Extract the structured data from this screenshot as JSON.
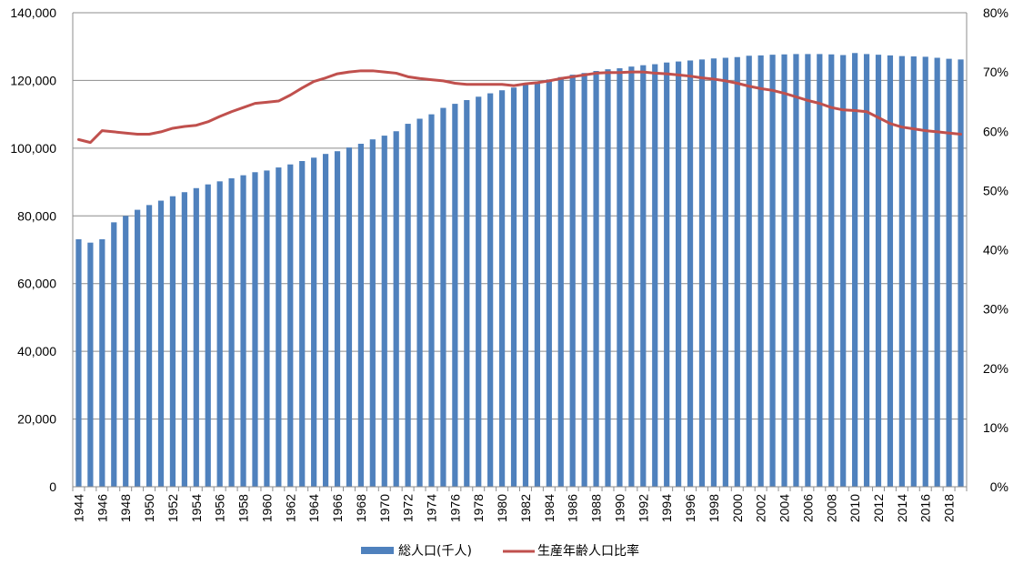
{
  "chart_data": {
    "type": "bar",
    "x": [
      1944,
      1945,
      1946,
      1947,
      1948,
      1949,
      1950,
      1951,
      1952,
      1953,
      1954,
      1955,
      1956,
      1957,
      1958,
      1959,
      1960,
      1961,
      1962,
      1963,
      1964,
      1965,
      1966,
      1967,
      1968,
      1969,
      1970,
      1971,
      1972,
      1973,
      1974,
      1975,
      1976,
      1977,
      1978,
      1979,
      1980,
      1981,
      1982,
      1983,
      1984,
      1985,
      1986,
      1987,
      1988,
      1989,
      1990,
      1991,
      1992,
      1993,
      1994,
      1995,
      1996,
      1997,
      1998,
      1999,
      2000,
      2001,
      2002,
      2003,
      2004,
      2005,
      2006,
      2007,
      2008,
      2009,
      2010,
      2011,
      2012,
      2013,
      2014,
      2015,
      2016,
      2017,
      2018,
      2019
    ],
    "x_tick_labels": [
      "1944",
      "1946",
      "1948",
      "1950",
      "1952",
      "1954",
      "1956",
      "1958",
      "1960",
      "1962",
      "1964",
      "1966",
      "1968",
      "1970",
      "1972",
      "1974",
      "1976",
      "1978",
      "1980",
      "1982",
      "1984",
      "1986",
      "1988",
      "1990",
      "1992",
      "1994",
      "1996",
      "1998",
      "2000",
      "2002",
      "2004",
      "2006",
      "2008",
      "2010",
      "2012",
      "2014",
      "2016",
      "2018"
    ],
    "series": [
      {
        "name": "総人口(千人)",
        "kind": "bar",
        "axis": "left",
        "color": "#4F81BD",
        "values": [
          73100,
          72100,
          73100,
          78100,
          80000,
          81800,
          83200,
          84500,
          85800,
          87000,
          88200,
          89300,
          90200,
          91100,
          92000,
          92900,
          93400,
          94300,
          95200,
          96200,
          97200,
          98300,
          99100,
          100200,
          101300,
          102600,
          103700,
          105000,
          107200,
          108700,
          110000,
          111900,
          113100,
          114200,
          115200,
          116200,
          117100,
          117900,
          118700,
          119500,
          120300,
          121000,
          121700,
          122200,
          122800,
          123300,
          123600,
          124100,
          124500,
          124800,
          125300,
          125600,
          125900,
          126200,
          126500,
          126700,
          126900,
          127300,
          127400,
          127600,
          127700,
          127800,
          127800,
          127800,
          127700,
          127500,
          128100,
          127800,
          127600,
          127400,
          127200,
          127100,
          127000,
          126700,
          126400,
          126200
        ]
      },
      {
        "name": "生産年齢人口比率",
        "kind": "line",
        "axis": "right",
        "color": "#C0504D",
        "values": [
          58.6,
          58.1,
          60.1,
          59.9,
          59.7,
          59.5,
          59.5,
          59.9,
          60.5,
          60.8,
          61.0,
          61.6,
          62.5,
          63.3,
          64.0,
          64.7,
          64.9,
          65.1,
          66.1,
          67.3,
          68.4,
          69.0,
          69.7,
          70.0,
          70.2,
          70.2,
          70.0,
          69.8,
          69.2,
          68.9,
          68.7,
          68.5,
          68.1,
          67.9,
          67.9,
          67.9,
          67.9,
          67.7,
          68.0,
          68.2,
          68.5,
          68.9,
          69.2,
          69.5,
          69.8,
          69.9,
          69.9,
          70.0,
          70.0,
          69.8,
          69.7,
          69.5,
          69.3,
          69.0,
          68.8,
          68.5,
          68.1,
          67.6,
          67.2,
          66.9,
          66.4,
          65.8,
          65.2,
          64.7,
          64.0,
          63.6,
          63.5,
          63.3,
          62.3,
          61.3,
          60.7,
          60.4,
          60.1,
          59.9,
          59.7,
          59.5
        ]
      }
    ],
    "y_left": {
      "min": 0,
      "max": 140000,
      "ticks": [
        "0",
        "20,000",
        "40,000",
        "60,000",
        "80,000",
        "100,000",
        "120,000",
        "140,000"
      ]
    },
    "y_right": {
      "min": 0,
      "max": 80,
      "ticks": [
        "0%",
        "10%",
        "20%",
        "30%",
        "40%",
        "50%",
        "60%",
        "70%",
        "80%"
      ]
    },
    "grid": true,
    "legend": "bottom-center",
    "title": "",
    "xlabel": "",
    "ylabel": ""
  }
}
